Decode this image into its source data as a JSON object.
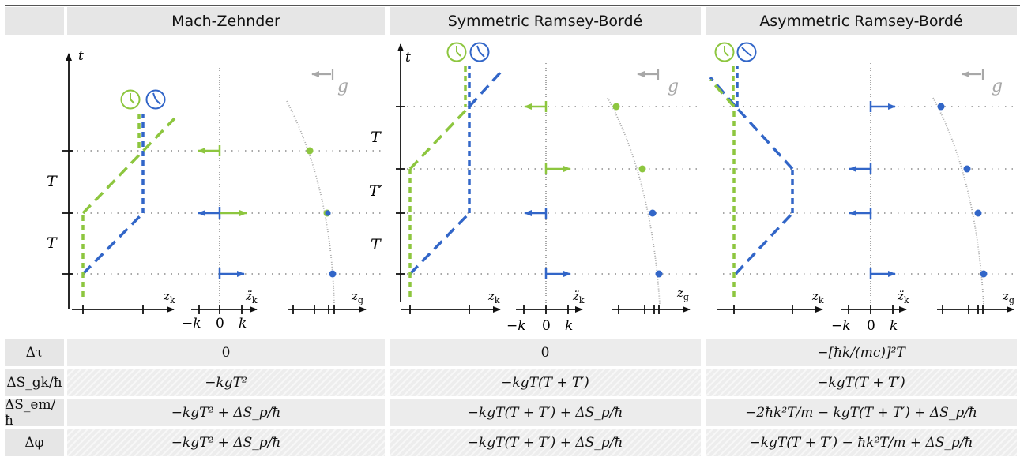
{
  "columns": [
    "Mach-Zehnder",
    "Symmetric Ramsey-Bordé",
    "Asymmetric Ramsey-Bordé"
  ],
  "diagram_labels": {
    "t": "t",
    "g": "g",
    "T": "T",
    "Tprime": "T′",
    "zk": "z",
    "zk_sub": "k",
    "zkdd": "z̈",
    "zkdd_sub": "k",
    "zg": "z",
    "zg_sub": "g",
    "minus_k": "−k",
    "zero": "0",
    "plus_k": "k"
  },
  "colors": {
    "green": "#8dc63f",
    "blue": "#3266c8",
    "gray": "#a8a8a8",
    "header": "#e6e6e6"
  },
  "table": {
    "rows": [
      {
        "label": "Δτ",
        "values": [
          "0",
          "0",
          "−[ħk/(mc)]²T"
        ]
      },
      {
        "label": "ΔS_gk/ħ",
        "values": [
          "−kgT²",
          "−kgT(T + T′)",
          "−kgT(T + T′)"
        ]
      },
      {
        "label": "ΔS_em/ħ",
        "values": [
          "−kgT² + ΔS_p/ħ",
          "−kgT(T + T′) + ΔS_p/ħ",
          "−2ħk²T/m − kgT(T + T′) + ΔS_p/ħ"
        ]
      },
      {
        "label": "Δφ",
        "values": [
          "−kgT² + ΔS_p/ħ",
          "−kgT(T + T′) + ΔS_p/ħ",
          "−kgT(T + T′) − ħk²T/m + ΔS_p/ħ"
        ]
      }
    ]
  }
}
